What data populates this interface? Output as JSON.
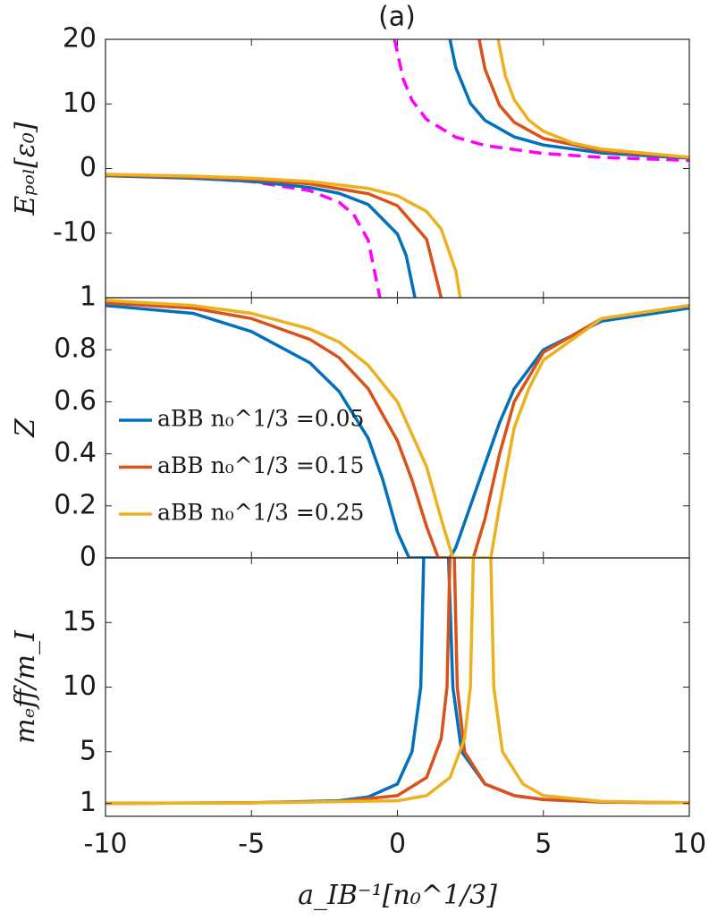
{
  "chart_data": [
    {
      "type": "line",
      "title": "(a)",
      "ylabel": "Eₚₒₗ[ε₀]",
      "xlim": [
        -10,
        10
      ],
      "ylim": [
        -20,
        20
      ],
      "yticks": [
        -10,
        0,
        10,
        20
      ],
      "series": [
        {
          "color": "#ff00ff",
          "dashed": true,
          "x": [
            -10,
            -7,
            -5,
            -3,
            -2,
            -1.5,
            -1,
            -0.6,
            null,
            -0.1,
            0.2,
            0.5,
            1,
            2,
            3,
            5,
            7,
            10
          ],
          "values": [
            -1.0,
            -1.44,
            -2.02,
            -3.42,
            -5.22,
            -7.1,
            -11.1,
            -20,
            null,
            20,
            13.83,
            10.57,
            7.59,
            4.85,
            3.57,
            2.33,
            1.73,
            1.25
          ]
        },
        {
          "color": "#0072bd",
          "x": [
            -10,
            -7,
            -5,
            -3,
            -2,
            -1,
            0,
            0.3,
            0.6,
            null,
            1.8,
            2,
            2.5,
            3,
            4,
            5,
            7,
            10
          ],
          "values": [
            -1.1,
            -1.5,
            -1.98,
            -2.93,
            -3.84,
            -5.57,
            -10.14,
            -13.46,
            -20,
            null,
            20,
            15.62,
            10.09,
            7.45,
            4.9,
            3.64,
            2.41,
            1.6
          ]
        },
        {
          "color": "#d95319",
          "x": [
            -10,
            -7,
            -5,
            -3,
            -1,
            0,
            1,
            1.5,
            null,
            2.8,
            3,
            3.5,
            4,
            5,
            7,
            10
          ],
          "values": [
            -1.0,
            -1.33,
            -1.7,
            -2.37,
            -3.9,
            -5.75,
            -10.95,
            -20,
            null,
            20,
            15.4,
            9.77,
            7.16,
            4.66,
            2.75,
            1.7
          ]
        },
        {
          "color": "#edb120",
          "x": [
            -10,
            -7,
            -5,
            -3,
            -1,
            0,
            1,
            1.5,
            2,
            2.15,
            null,
            3.45,
            3.7,
            4,
            4.5,
            5,
            6,
            7,
            10
          ],
          "values": [
            -0.9,
            -1.18,
            -1.48,
            -2.0,
            -3.08,
            -4.21,
            -6.65,
            -9.37,
            -15.85,
            -20,
            null,
            20,
            14.31,
            10.66,
            7.49,
            5.77,
            3.95,
            3.01,
            1.75
          ]
        }
      ]
    },
    {
      "type": "line",
      "ylabel": "Z",
      "xlim": [
        -10,
        10
      ],
      "ylim": [
        0,
        1
      ],
      "yticks": [
        0,
        0.2,
        0.4,
        0.6,
        0.8,
        1
      ],
      "legend": "left",
      "series": [
        {
          "name": "aBB n₀^1/3 =0.05",
          "color": "#0072bd",
          "x": [
            -10,
            -7,
            -5,
            -3,
            -2,
            -1,
            -0.5,
            0,
            0.4,
            1.8,
            2,
            2.5,
            3,
            3.5,
            4,
            5,
            7,
            10
          ],
          "values": [
            0.97,
            0.94,
            0.87,
            0.75,
            0.64,
            0.46,
            0.3,
            0.1,
            0,
            0,
            0.04,
            0.2,
            0.36,
            0.52,
            0.65,
            0.8,
            0.91,
            0.96
          ]
        },
        {
          "name": "aBB n₀^1/3 =0.15",
          "color": "#d95319",
          "x": [
            -10,
            -7,
            -5,
            -3,
            -2,
            -1,
            0,
            0.5,
            1,
            1.4,
            2.6,
            3,
            3.5,
            4,
            5,
            7,
            10
          ],
          "values": [
            0.98,
            0.96,
            0.92,
            0.84,
            0.77,
            0.65,
            0.45,
            0.3,
            0.12,
            0,
            0,
            0.15,
            0.4,
            0.6,
            0.79,
            0.92,
            0.97
          ]
        },
        {
          "name": "aBB n₀^1/3 =0.25",
          "color": "#edb120",
          "x": [
            -10,
            -7,
            -5,
            -3,
            -2,
            -1,
            0,
            1,
            1.5,
            1.9,
            3.2,
            3.5,
            4,
            4.5,
            5,
            7,
            10
          ],
          "values": [
            0.99,
            0.97,
            0.94,
            0.88,
            0.83,
            0.74,
            0.6,
            0.35,
            0.15,
            0,
            0,
            0.2,
            0.5,
            0.65,
            0.76,
            0.92,
            0.97
          ]
        }
      ]
    },
    {
      "type": "line",
      "ylabel": "mₑff/m_I",
      "xlabel": "a_IB⁻¹[n₀^1/3]",
      "xlim": [
        -10,
        10
      ],
      "ylim": [
        0,
        20
      ],
      "xticks": [
        -10,
        -5,
        0,
        5,
        10
      ],
      "yticks": [
        1,
        5,
        10,
        15
      ],
      "series": [
        {
          "color": "#0072bd",
          "x": [
            -10,
            -5,
            -2,
            -1,
            0,
            0.5,
            0.8,
            0.9,
            null,
            1.75,
            1.9,
            2.2,
            3,
            4,
            5,
            7,
            10
          ],
          "values": [
            1,
            1.05,
            1.2,
            1.5,
            2.5,
            5,
            10,
            20,
            null,
            20,
            10,
            5,
            2.5,
            1.6,
            1.3,
            1.1,
            1.05
          ]
        },
        {
          "color": "#d95319",
          "x": [
            -10,
            -5,
            -2,
            0,
            1,
            1.5,
            1.7,
            1.8,
            null,
            1.95,
            2.05,
            2.3,
            3,
            4,
            5,
            7,
            10
          ],
          "values": [
            1,
            1.05,
            1.15,
            1.6,
            3,
            6,
            10,
            20,
            null,
            20,
            10,
            5,
            2.5,
            1.6,
            1.3,
            1.1,
            1.05
          ]
        },
        {
          "color": "#edb120",
          "x": [
            -10,
            -5,
            0,
            1,
            1.8,
            2.3,
            2.5,
            2.6,
            null,
            3.2,
            3.3,
            3.6,
            4.3,
            5,
            7,
            10
          ],
          "values": [
            1,
            1.04,
            1.2,
            1.6,
            3,
            6,
            10,
            20,
            null,
            20,
            10,
            5,
            2.5,
            1.6,
            1.15,
            1.05
          ]
        }
      ]
    }
  ]
}
